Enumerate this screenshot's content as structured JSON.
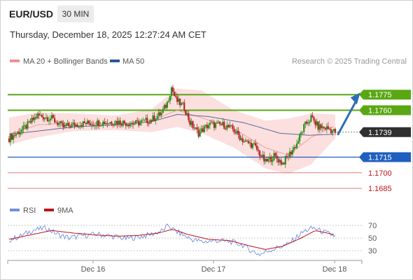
{
  "header": {
    "symbol": "EUR/USD",
    "timeframe": "30 MIN",
    "datetime": "Thursday, December 18, 2025 12:27:24 AM CET"
  },
  "legend": {
    "items": [
      {
        "label": "MA 20 + Bollinger Bands",
        "color": "#f08f8f"
      },
      {
        "label": "MA 50",
        "color": "#2b5797"
      }
    ],
    "credit": "Research © 2025 Trading Central"
  },
  "colors": {
    "bull": "#2f8f1f",
    "bear": "#b3282d",
    "resistance": "#5aa713",
    "pivot": "#1f5fbf",
    "support": "#e27a7a",
    "ma50": "#5a6a9a",
    "ma20": "#f0a0a0",
    "band": "#fbd9d9",
    "arrow": "#2e6db4",
    "current": "#2f2f2f",
    "rsi": "#6f90e0",
    "rsi_ma": "#c0141b"
  },
  "chart_data": [
    {
      "type": "candlestick",
      "name": "price",
      "ylim": [
        1.1677,
        1.1798
      ],
      "current_price": 1.1739,
      "levels": [
        {
          "label": "1.1775",
          "value": 1.1775,
          "kind": "resistance"
        },
        {
          "label": "1.1760",
          "value": 1.176,
          "kind": "resistance"
        },
        {
          "label": "1.1715",
          "value": 1.1715,
          "kind": "pivot"
        },
        {
          "label": "1.1700",
          "value": 1.17,
          "kind": "support"
        },
        {
          "label": "1.1685",
          "value": 1.1685,
          "kind": "support"
        }
      ],
      "current_label": "1.1739",
      "forecast_arrow": {
        "from": [
          0.0,
          1.1737
        ],
        "to": [
          3.5,
          1.1773
        ]
      },
      "x_ticks": [
        "Dec 16",
        "Dec 17",
        "Dec 18"
      ],
      "close_path": [
        [
          0,
          1.1733
        ],
        [
          10,
          1.1742
        ],
        [
          20,
          1.1755
        ],
        [
          30,
          1.1752
        ],
        [
          38,
          1.1744
        ],
        [
          50,
          1.1747
        ],
        [
          62,
          1.1748
        ],
        [
          75,
          1.1749
        ],
        [
          88,
          1.1747
        ],
        [
          100,
          1.1751
        ],
        [
          107,
          1.1757
        ],
        [
          111,
          1.1767
        ],
        [
          114,
          1.1782
        ],
        [
          117,
          1.177
        ],
        [
          123,
          1.1763
        ],
        [
          127,
          1.1748
        ],
        [
          133,
          1.1738
        ],
        [
          140,
          1.1746
        ],
        [
          150,
          1.1746
        ],
        [
          157,
          1.1742
        ],
        [
          165,
          1.173
        ],
        [
          172,
          1.1726
        ],
        [
          180,
          1.171
        ],
        [
          186,
          1.1716
        ],
        [
          192,
          1.1709
        ],
        [
          198,
          1.172
        ],
        [
          202,
          1.1728
        ],
        [
          207,
          1.1744
        ],
        [
          212,
          1.1753
        ],
        [
          217,
          1.1744
        ],
        [
          223,
          1.1743
        ],
        [
          229,
          1.1739
        ]
      ],
      "ma50_path": [
        [
          0,
          1.1737
        ],
        [
          20,
          1.174
        ],
        [
          45,
          1.1744
        ],
        [
          75,
          1.1746
        ],
        [
          100,
          1.1749
        ],
        [
          118,
          1.1756
        ],
        [
          140,
          1.1754
        ],
        [
          165,
          1.1748
        ],
        [
          190,
          1.1738
        ],
        [
          210,
          1.1736
        ],
        [
          229,
          1.1737
        ]
      ],
      "ma20_path": [
        [
          0,
          1.1737
        ],
        [
          20,
          1.1746
        ],
        [
          45,
          1.1748
        ],
        [
          75,
          1.1747
        ],
        [
          100,
          1.175
        ],
        [
          118,
          1.176
        ],
        [
          135,
          1.1753
        ],
        [
          158,
          1.1742
        ],
        [
          180,
          1.1724
        ],
        [
          196,
          1.1717
        ],
        [
          212,
          1.1734
        ],
        [
          229,
          1.1745
        ]
      ],
      "band_upper_path": [
        [
          0,
          1.1753
        ],
        [
          20,
          1.1758
        ],
        [
          45,
          1.1757
        ],
        [
          75,
          1.1755
        ],
        [
          100,
          1.1761
        ],
        [
          118,
          1.1781
        ],
        [
          135,
          1.1779
        ],
        [
          158,
          1.176
        ],
        [
          180,
          1.175
        ],
        [
          196,
          1.1752
        ],
        [
          212,
          1.1757
        ],
        [
          229,
          1.1756
        ]
      ],
      "band_lower_path": [
        [
          0,
          1.1727
        ],
        [
          20,
          1.1734
        ],
        [
          45,
          1.174
        ],
        [
          75,
          1.1741
        ],
        [
          100,
          1.1739
        ],
        [
          118,
          1.1744
        ],
        [
          135,
          1.1738
        ],
        [
          158,
          1.1724
        ],
        [
          180,
          1.1704
        ],
        [
          196,
          1.1699
        ],
        [
          212,
          1.1708
        ],
        [
          229,
          1.1733
        ]
      ]
    },
    {
      "type": "line",
      "name": "rsi",
      "ylim": [
        18,
        80
      ],
      "y_ticks": [
        "70",
        "50",
        "30"
      ],
      "y_tick_values": [
        70,
        50,
        30
      ],
      "legend": [
        {
          "label": "RSI",
          "color": "#6f90e0"
        },
        {
          "label": "9MA",
          "color": "#c0141b"
        }
      ],
      "rsi_path": [
        [
          0,
          47
        ],
        [
          8,
          53
        ],
        [
          16,
          62
        ],
        [
          26,
          66
        ],
        [
          34,
          56
        ],
        [
          42,
          50
        ],
        [
          52,
          54
        ],
        [
          62,
          56
        ],
        [
          72,
          53
        ],
        [
          82,
          49
        ],
        [
          92,
          52
        ],
        [
          100,
          56
        ],
        [
          108,
          62
        ],
        [
          112,
          70
        ],
        [
          116,
          62
        ],
        [
          122,
          55
        ],
        [
          128,
          48
        ],
        [
          136,
          44
        ],
        [
          146,
          46
        ],
        [
          156,
          44
        ],
        [
          164,
          39
        ],
        [
          170,
          30
        ],
        [
          176,
          24
        ],
        [
          182,
          30
        ],
        [
          190,
          36
        ],
        [
          196,
          40
        ],
        [
          202,
          52
        ],
        [
          208,
          62
        ],
        [
          214,
          66
        ],
        [
          220,
          60
        ],
        [
          229,
          53
        ]
      ],
      "ma_path": [
        [
          0,
          48
        ],
        [
          15,
          55
        ],
        [
          30,
          62
        ],
        [
          45,
          58
        ],
        [
          60,
          55
        ],
        [
          75,
          53
        ],
        [
          90,
          54
        ],
        [
          105,
          58
        ],
        [
          115,
          64
        ],
        [
          125,
          56
        ],
        [
          140,
          48
        ],
        [
          155,
          46
        ],
        [
          168,
          38
        ],
        [
          180,
          32
        ],
        [
          192,
          37
        ],
        [
          205,
          50
        ],
        [
          215,
          62
        ],
        [
          229,
          55
        ]
      ]
    }
  ]
}
